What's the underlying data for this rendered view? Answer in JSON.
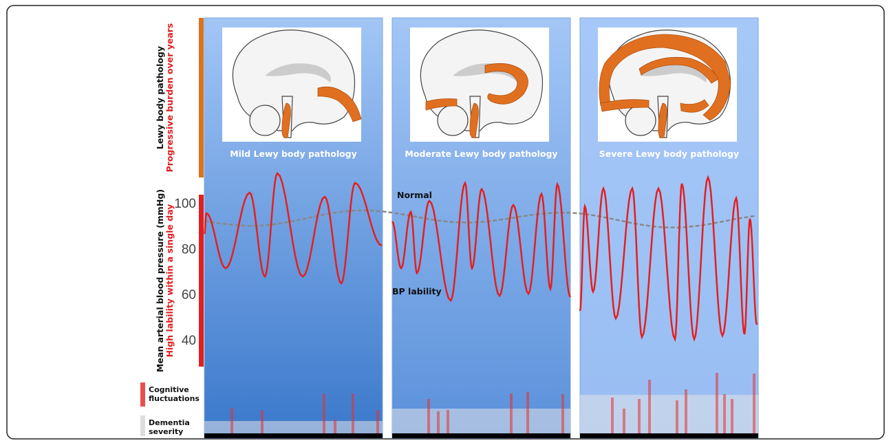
{
  "panels": [
    {
      "label": "Mild Lewy body pathology"
    },
    {
      "label": "Moderate Lewy body pathology"
    },
    {
      "label": "Severe Lewy body pathology"
    }
  ],
  "left_axis": {
    "pathology_label": "Lewy body pathology",
    "pathology_sublabel": "Progressive burden over years",
    "bp_label": "Mean arterial blood pressure (mmHg)",
    "bp_sublabel": "High lability within a single day",
    "yticks": [
      100,
      80,
      60,
      40
    ]
  },
  "annotations": {
    "normal": "Normal",
    "bp_lability": "BP lability"
  },
  "legend": {
    "cognitive": "Cognitive fluctuations",
    "dementia": "Dementia severity"
  }
}
